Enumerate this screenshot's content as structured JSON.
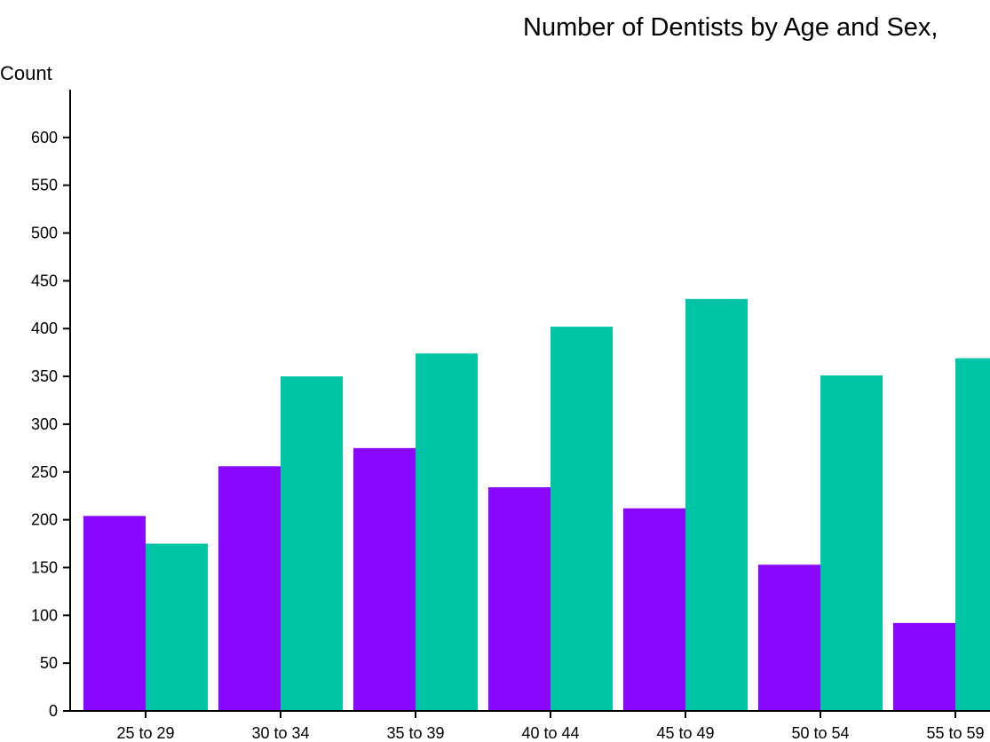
{
  "chart_data": {
    "type": "bar",
    "title": "Number of Dentists by Age and Sex,",
    "xlabel": "",
    "ylabel": "Count",
    "ylim": [
      0,
      650
    ],
    "yticks": [
      0,
      50,
      100,
      150,
      200,
      250,
      300,
      350,
      400,
      450,
      500,
      550,
      600
    ],
    "categories": [
      "25 to 29",
      "30 to 34",
      "35 to 39",
      "40 to 44",
      "45 to 49",
      "50 to 54",
      "55 to 59"
    ],
    "series": [
      {
        "values": [
          204,
          256,
          275,
          234,
          212,
          153,
          92
        ],
        "color": "#8b08ff"
      },
      {
        "values": [
          175,
          350,
          374,
          402,
          431,
          351,
          369
        ],
        "color": "#00c4a6"
      }
    ],
    "grid": false,
    "legend": "none"
  }
}
